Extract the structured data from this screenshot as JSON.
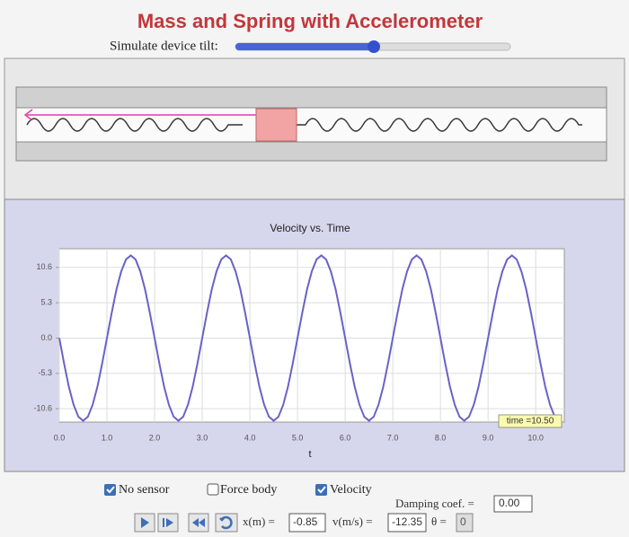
{
  "header": {
    "title": "Mass and Spring with Accelerometer",
    "tilt_label": "Simulate device tilt:"
  },
  "chart_data": {
    "type": "line",
    "title": "Velocity vs. Time",
    "x_label": "t",
    "color": "#6a62c8",
    "annotation": "time =10.50",
    "x": [
      0,
      0.1,
      0.2,
      0.3,
      0.4,
      0.5,
      0.6,
      0.7,
      0.8,
      0.9,
      1,
      1.1,
      1.2,
      1.3,
      1.4,
      1.5,
      1.6,
      1.7,
      1.8,
      1.9,
      2,
      2.1,
      2.2,
      2.3,
      2.4,
      2.5,
      2.6,
      2.7,
      2.8,
      2.9,
      3,
      3.1,
      3.2,
      3.3,
      3.4,
      3.5,
      3.6,
      3.7,
      3.8,
      3.9,
      4,
      4.1,
      4.2,
      4.3,
      4.4,
      4.5,
      4.6,
      4.7,
      4.8,
      4.9,
      5,
      5.1,
      5.2,
      5.3,
      5.4,
      5.5,
      5.6,
      5.7,
      5.8,
      5.9,
      6,
      6.1,
      6.2,
      6.3,
      6.4,
      6.5,
      6.6,
      6.7,
      6.8,
      6.9,
      7,
      7.1,
      7.2,
      7.3,
      7.4,
      7.5,
      7.6,
      7.7,
      7.8,
      7.9,
      8,
      8.1,
      8.2,
      8.3,
      8.4,
      8.5,
      8.6,
      8.7,
      8.8,
      8.9,
      9,
      9.1,
      9.2,
      9.3,
      9.4,
      9.5,
      9.6,
      9.7,
      9.8,
      9.9,
      10,
      10.1,
      10.2,
      10.3,
      10.4,
      10.5
    ],
    "values": [
      0,
      -3.8,
      -7.3,
      -10,
      -11.8,
      -12.4,
      -11.8,
      -10,
      -7.3,
      -3.8,
      0,
      3.8,
      7.3,
      10,
      11.8,
      12.4,
      11.8,
      10,
      7.3,
      3.8,
      0,
      -3.8,
      -7.3,
      -10,
      -11.8,
      -12.4,
      -11.8,
      -10,
      -7.3,
      -3.8,
      0,
      3.8,
      7.3,
      10,
      11.8,
      12.4,
      11.8,
      10,
      7.3,
      3.8,
      0,
      -3.8,
      -7.3,
      -10,
      -11.8,
      -12.4,
      -11.8,
      -10,
      -7.3,
      -3.8,
      0,
      3.8,
      7.3,
      10,
      11.8,
      12.4,
      11.8,
      10,
      7.3,
      3.8,
      0,
      -3.8,
      -7.3,
      -10,
      -11.8,
      -12.4,
      -11.8,
      -10,
      -7.3,
      -3.8,
      0,
      3.8,
      7.3,
      10,
      11.8,
      12.4,
      11.8,
      10,
      7.3,
      3.8,
      0,
      -3.8,
      -7.3,
      -10,
      -11.8,
      -12.4,
      -11.8,
      -10,
      -7.3,
      -3.8,
      0,
      3.8,
      7.3,
      10,
      11.8,
      12.4,
      11.8,
      10,
      7.3,
      3.8,
      0,
      -3.8,
      -7.3,
      -10,
      -11.8,
      -12.4
    ],
    "xlim": [
      0,
      10.6
    ],
    "ylim": [
      -12.6,
      13.4
    ],
    "xticks": [
      {
        "value": 0,
        "label": "0.0"
      },
      {
        "value": 1,
        "label": "1.0"
      },
      {
        "value": 2,
        "label": "2.0"
      },
      {
        "value": 3,
        "label": "3.0"
      },
      {
        "value": 4,
        "label": "4.0"
      },
      {
        "value": 5,
        "label": "5.0"
      },
      {
        "value": 6,
        "label": "6.0"
      },
      {
        "value": 7,
        "label": "7.0"
      },
      {
        "value": 8,
        "label": "8.0"
      },
      {
        "value": 9,
        "label": "9.0"
      },
      {
        "value": 10,
        "label": "10.0"
      }
    ],
    "yticks": [
      10.6,
      5.3,
      {
        "value": 0,
        "label": "0.0"
      },
      -5.3,
      -10.6
    ],
    "grid": true
  },
  "controls": {
    "no_sensor": "No sensor",
    "force_body": "Force body",
    "velocity": "Velocity",
    "damping_label": "Damping coef. =",
    "damping_value": "0.00",
    "x_label": "x(m) =",
    "x_value": "-0.85",
    "v_label": "v(m/s) =",
    "v_value": "-12.35",
    "theta_label": "θ =",
    "theta_value": "0"
  }
}
